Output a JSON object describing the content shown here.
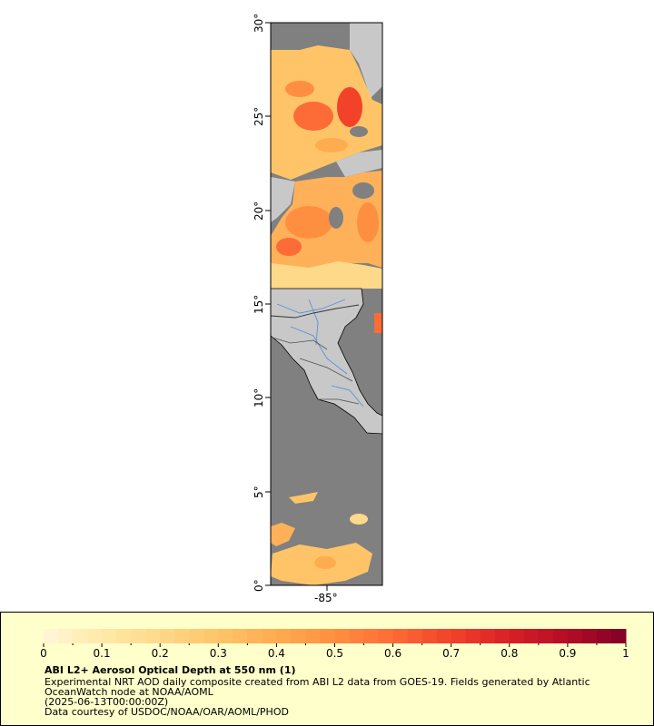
{
  "map": {
    "lat_ticks": [
      "0°",
      "5°",
      "10°",
      "15°",
      "20°",
      "25°",
      "30°"
    ],
    "lon_ticks": [
      "-85°"
    ],
    "colors": {
      "land": "#c8c8c8",
      "no_data": "#808080",
      "coastline": "#000000",
      "rivers": "#5f8fd0",
      "borders": "#505050"
    }
  },
  "colorbar": {
    "labels": [
      "0",
      "0.1",
      "0.2",
      "0.3",
      "0.4",
      "0.5",
      "0.6",
      "0.7",
      "0.8",
      "0.9",
      "1"
    ],
    "min": 0,
    "max": 1,
    "colors": [
      "#fff7d8",
      "#ffe9a8",
      "#ffd98a",
      "#ffc468",
      "#ffab50",
      "#ff8f40",
      "#fd6b37",
      "#f2422a",
      "#d91f26",
      "#b30d26",
      "#800026"
    ]
  },
  "legend": {
    "title": "ABI L2+ Aerosol Optical Depth at 550 nm (1)",
    "line1": "Experimental NRT AOD daily composite created from ABI L2 data from GOES-19. Fields generated by Atlantic",
    "line2": "OceanWatch node at NOAA/AOML",
    "line3": "(2025-06-13T00:00:00Z)",
    "line4": "Data courtesy of USDOC/NOAA/OAR/AOML/PHOD",
    "background": "#ffffcc"
  }
}
